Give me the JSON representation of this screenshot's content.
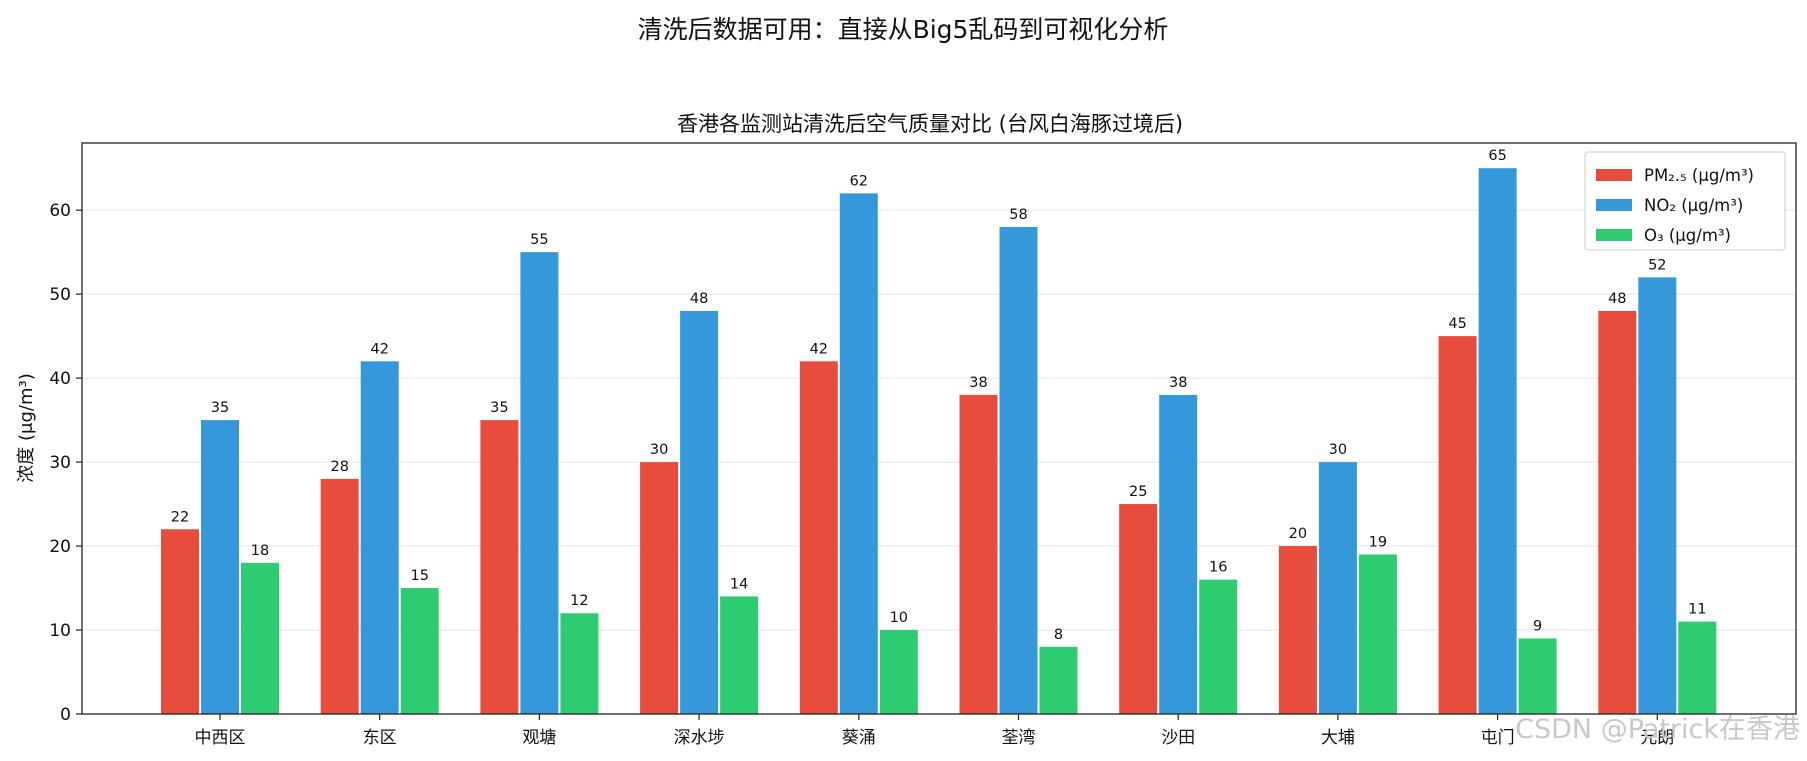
{
  "suptitle": "清洗后数据可用：直接从Big5乱码到可视化分析",
  "watermark": "CSDN @Patrick在香港",
  "chart_data": {
    "type": "bar",
    "title": "香港各监测站清洗后空气质量对比 (台风白海豚过境后)",
    "xlabel": "",
    "ylabel": "浓度 (μg/m³)",
    "ylim": [
      0,
      68
    ],
    "yticks": [
      0,
      10,
      20,
      30,
      40,
      50,
      60
    ],
    "grid": "horizontal",
    "legend_position": "top-right",
    "categories": [
      "中西区",
      "东区",
      "观塘",
      "深水埗",
      "葵涌",
      "荃湾",
      "沙田",
      "大埔",
      "屯门",
      "元朗"
    ],
    "series": [
      {
        "name": "PM₂.₅ (μg/m³)",
        "color": "#e74c3c",
        "values": [
          22,
          28,
          35,
          30,
          42,
          38,
          25,
          20,
          45,
          48
        ]
      },
      {
        "name": "NO₂ (μg/m³)",
        "color": "#3498db",
        "values": [
          35,
          42,
          55,
          48,
          62,
          58,
          38,
          30,
          65,
          52
        ]
      },
      {
        "name": "O₃ (μg/m³)",
        "color": "#2ecc71",
        "values": [
          18,
          15,
          12,
          14,
          10,
          8,
          16,
          19,
          9,
          11
        ]
      }
    ]
  }
}
